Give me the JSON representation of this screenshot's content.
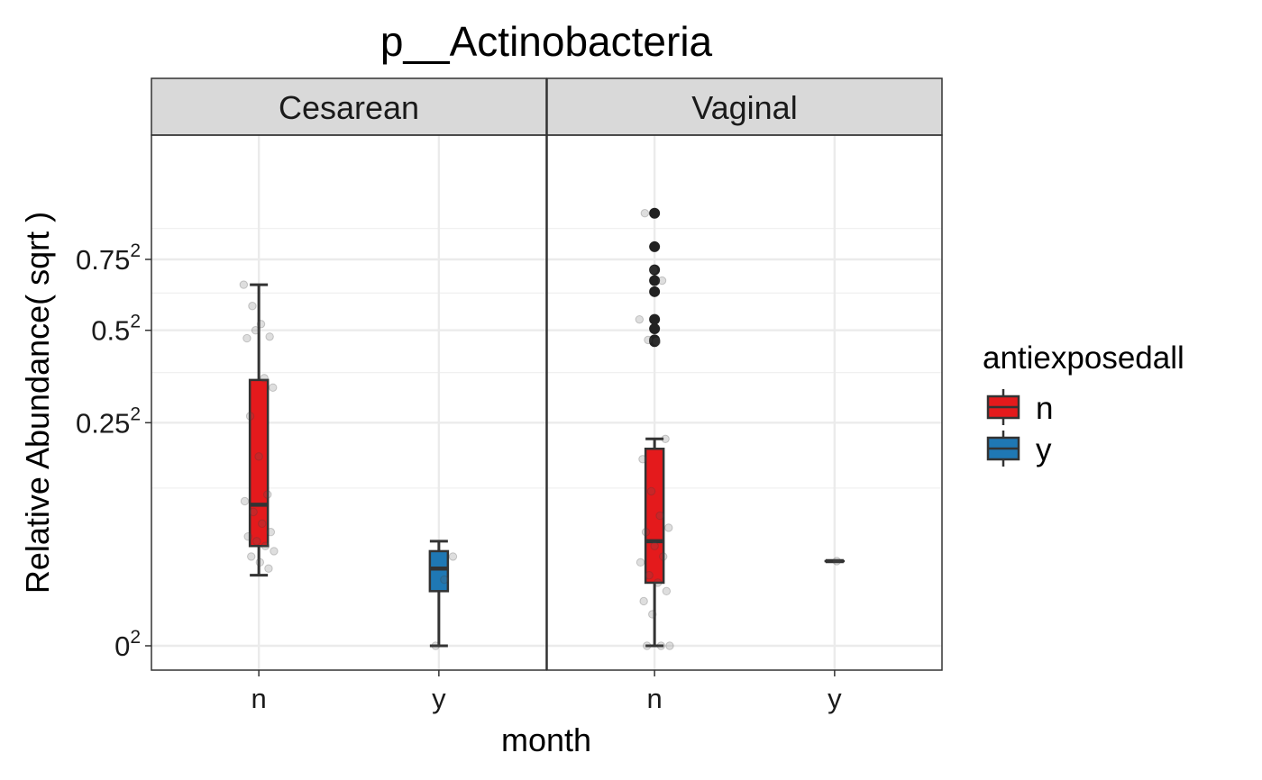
{
  "chart_data": {
    "type": "box",
    "title": "p__Actinobacteria",
    "xlabel": "month",
    "ylabel": "Relative Abundance( sqrt )",
    "y_scale": "sqrt",
    "ylim": [
      0,
      0.92
    ],
    "y_ticks": [
      {
        "value": 0,
        "base": "0",
        "exp": "2"
      },
      {
        "value": 0.25,
        "base": "0.25",
        "exp": "2"
      },
      {
        "value": 0.5,
        "base": "0.5",
        "exp": "2"
      },
      {
        "value": 0.75,
        "base": "0.75",
        "exp": "2"
      }
    ],
    "grid": true,
    "legend": {
      "title": "antiexposedall",
      "position": "right",
      "entries": [
        {
          "label": "n",
          "color": "#E41A1C"
        },
        {
          "label": "y",
          "color": "#1F78B4"
        }
      ]
    },
    "categories": [
      "n",
      "y"
    ],
    "facets": [
      {
        "label": "Cesarean",
        "boxes": [
          {
            "category": "n",
            "group": "n",
            "q1": 0.05,
            "median": 0.1,
            "q3": 0.355,
            "whisker_low": 0.025,
            "whisker_high": 0.655,
            "outliers": [],
            "jitter": [
              0.655,
              0.58,
              0.52,
              0.48,
              0.475,
              0.5,
              0.36,
              0.335,
              0.265,
              0.18,
              0.115,
              0.105,
              0.09,
              0.075,
              0.065,
              0.06,
              0.055,
              0.05,
              0.045,
              0.04,
              0.035,
              0.03
            ]
          },
          {
            "category": "y",
            "group": "y",
            "q1": 0.015,
            "median": 0.03,
            "q3": 0.045,
            "whisker_low": 0.0,
            "whisker_high": 0.055,
            "outliers": [],
            "jitter": [
              0.0,
              0.022,
              0.04
            ]
          }
        ]
      },
      {
        "label": "Vaginal",
        "boxes": [
          {
            "category": "n",
            "group": "n",
            "q1": 0.02,
            "median": 0.055,
            "q3": 0.195,
            "whisker_low": 0.0,
            "whisker_high": 0.215,
            "outliers": [
              0.94,
              0.8,
              0.71,
              0.67,
              0.63,
              0.535,
              0.505,
              0.47,
              0.465
            ],
            "jitter": [
              0.94,
              0.71,
              0.67,
              0.535,
              0.47,
              0.465,
              0.215,
              0.175,
              0.12,
              0.085,
              0.07,
              0.065,
              0.05,
              0.04,
              0.035,
              0.025,
              0.02,
              0.015,
              0.01,
              0.005,
              0.0,
              0.0,
              0.0
            ]
          },
          {
            "category": "y",
            "group": "y",
            "q1": 0.036,
            "median": 0.036,
            "q3": 0.036,
            "whisker_low": 0.036,
            "whisker_high": 0.036,
            "outliers": [],
            "jitter": [
              0.036
            ]
          }
        ]
      }
    ]
  }
}
